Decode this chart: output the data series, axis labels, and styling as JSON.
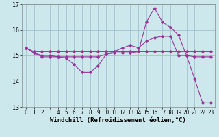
{
  "xlabel": "Windchill (Refroidissement éolien,°C)",
  "xlim_min": -0.5,
  "xlim_max": 23.5,
  "ylim_min": 13,
  "ylim_max": 17,
  "yticks": [
    13,
    14,
    15,
    16,
    17
  ],
  "xticks": [
    0,
    1,
    2,
    3,
    4,
    5,
    6,
    7,
    8,
    9,
    10,
    11,
    12,
    13,
    14,
    15,
    16,
    17,
    18,
    19,
    20,
    21,
    22,
    23
  ],
  "bg_color": "#cce8ec",
  "line_color": "#993399",
  "grid_color": "#99bbcc",
  "s1_x": [
    0,
    1,
    2,
    3,
    4,
    5,
    6,
    7,
    8,
    9,
    10,
    11,
    12,
    13,
    14,
    15,
    16,
    17,
    18,
    19,
    20,
    21,
    22,
    23
  ],
  "s1_y": [
    15.3,
    15.1,
    15.0,
    15.0,
    14.95,
    14.9,
    14.65,
    14.35,
    14.35,
    14.6,
    15.05,
    15.15,
    15.3,
    15.4,
    15.3,
    15.55,
    15.7,
    15.75,
    15.75,
    15.0,
    15.0,
    14.1,
    13.15,
    13.15
  ],
  "s2_x": [
    0,
    1,
    2,
    3,
    4,
    5,
    6,
    7,
    8,
    9,
    10,
    11,
    12,
    13,
    14,
    15,
    16,
    17,
    18,
    19,
    20,
    21,
    22,
    23
  ],
  "s2_y": [
    15.3,
    15.1,
    14.95,
    14.95,
    14.95,
    14.95,
    14.95,
    14.95,
    14.95,
    14.95,
    15.05,
    15.1,
    15.1,
    15.1,
    15.15,
    16.3,
    16.85,
    16.3,
    16.1,
    15.8,
    15.0,
    14.95,
    14.95,
    14.95
  ],
  "s3_x": [
    0,
    1,
    2,
    3,
    4,
    5,
    6,
    7,
    8,
    9,
    10,
    11,
    12,
    13,
    14,
    15,
    16,
    17,
    18,
    19,
    20,
    21,
    22,
    23
  ],
  "s3_y": [
    15.3,
    15.15,
    15.15,
    15.15,
    15.15,
    15.15,
    15.15,
    15.15,
    15.15,
    15.15,
    15.15,
    15.15,
    15.15,
    15.15,
    15.15,
    15.15,
    15.15,
    15.15,
    15.15,
    15.15,
    15.15,
    15.15,
    15.15,
    15.15
  ],
  "xlabel_fontsize": 6.5,
  "tick_fontsize": 6,
  "xtick_fontsize": 5.5,
  "figsize": [
    3.2,
    2.0
  ],
  "dpi": 100
}
